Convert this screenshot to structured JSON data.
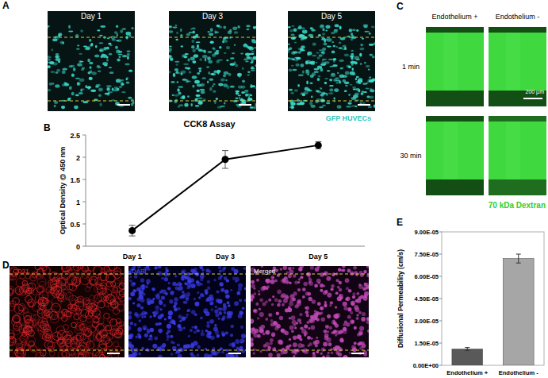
{
  "chart_data": [
    {
      "type": "line",
      "label": "B",
      "title": "CCK8 Assay",
      "y_label": "Optical Density @ 450 nm",
      "categories": [
        "Day 1",
        "Day 3",
        "Day 5"
      ],
      "values": [
        0.35,
        1.95,
        2.27
      ],
      "errors": [
        0.12,
        0.2,
        0.08
      ],
      "color": "#000000",
      "marker": "circle",
      "ylim": [
        0,
        2.5
      ],
      "yticks": [
        0,
        0.5,
        1,
        1.5,
        2,
        2.5
      ]
    },
    {
      "type": "bar",
      "label": "E",
      "y_label": "Diffusional Permeability (cm/s)",
      "categories": [
        "Endothelium +",
        "Endothelium -"
      ],
      "values": [
        1.1e-05,
        7.2e-05
      ],
      "errors": [
        1e-06,
        3e-06
      ],
      "colors": [
        "#595959",
        "#a6a6a6"
      ],
      "ylim": [
        0,
        9e-05
      ],
      "yticks": [
        {
          "value": 0,
          "label": "0.00E+00"
        },
        {
          "value": 1.5e-05,
          "label": "1.50E-05"
        },
        {
          "value": 3e-05,
          "label": "3.00E-05"
        },
        {
          "value": 4.5e-05,
          "label": "4.50E-05"
        },
        {
          "value": 6e-05,
          "label": "6.00E-05"
        },
        {
          "value": 7.5e-05,
          "label": "7.50E-05"
        },
        {
          "value": 9e-05,
          "label": "9.00E-05"
        }
      ]
    }
  ],
  "panels": {
    "A": {
      "label": "A",
      "images": [
        "Day 1",
        "Day 3",
        "Day 5"
      ],
      "caption": "GFP HUVECs"
    },
    "C": {
      "label": "C",
      "columns": [
        "Endothelium +",
        "Endothelium -"
      ],
      "rows": [
        "1 min",
        "30 min"
      ],
      "scale_bar": "200 µm",
      "caption": "70 kDa Dextran"
    },
    "D": {
      "label": "D",
      "images": [
        "CD31",
        "DAPI",
        "Merged"
      ]
    }
  }
}
